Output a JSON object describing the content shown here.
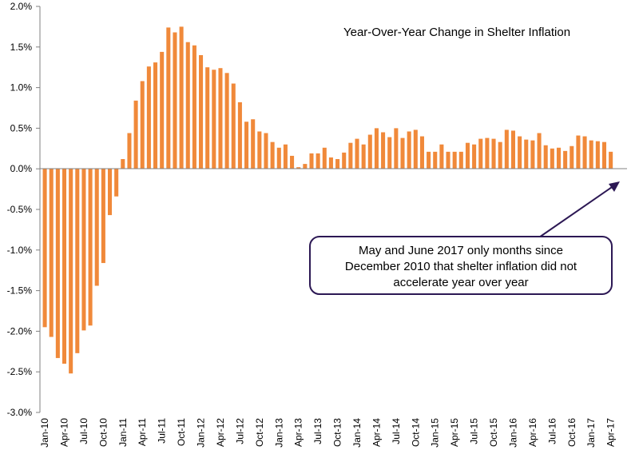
{
  "chart_data": {
    "type": "bar",
    "title": "Year-Over-Year Change in Shelter Inflation",
    "xlabel": "",
    "ylabel": "",
    "ylim": [
      -3.0,
      2.0
    ],
    "ytick_values": [
      2.0,
      1.5,
      1.0,
      0.5,
      0.0,
      -0.5,
      -1.0,
      -1.5,
      -2.0,
      -2.5,
      -3.0
    ],
    "ytick_labels": [
      "2.0%",
      "1.5%",
      "1.0%",
      "0.5%",
      "0.0%",
      "-0.5%",
      "-1.0%",
      "-1.5%",
      "-2.0%",
      "-2.5%",
      "-3.0%"
    ],
    "xtick_labels": [
      "Jan-10",
      "Apr-10",
      "Jul-10",
      "Oct-10",
      "Jan-11",
      "Apr-11",
      "Jul-11",
      "Oct-11",
      "Jan-12",
      "Apr-12",
      "Jul-12",
      "Oct-12",
      "Jan-13",
      "Apr-13",
      "Jul-13",
      "Oct-13",
      "Jan-14",
      "Apr-14",
      "Jul-14",
      "Oct-14",
      "Jan-15",
      "Apr-15",
      "Jul-15",
      "Oct-15",
      "Jan-16",
      "Apr-16",
      "Jul-16",
      "Oct-16",
      "Jan-17",
      "Apr-17"
    ],
    "bar_color": "#f0893a",
    "series": [
      {
        "name": "Year-Over-Year Change in Shelter Inflation (%)",
        "values": [
          -1.95,
          -2.07,
          -2.33,
          -2.4,
          -2.52,
          -2.27,
          -1.99,
          -1.93,
          -1.44,
          -1.16,
          -0.57,
          -0.34,
          0.12,
          0.44,
          0.84,
          1.08,
          1.26,
          1.31,
          1.44,
          1.74,
          1.68,
          1.75,
          1.56,
          1.52,
          1.4,
          1.25,
          1.22,
          1.24,
          1.18,
          1.05,
          0.82,
          0.58,
          0.61,
          0.46,
          0.44,
          0.33,
          0.26,
          0.3,
          0.16,
          0.02,
          0.06,
          0.19,
          0.19,
          0.26,
          0.14,
          0.12,
          0.2,
          0.32,
          0.37,
          0.3,
          0.42,
          0.5,
          0.45,
          0.39,
          0.5,
          0.38,
          0.46,
          0.48,
          0.4,
          0.21,
          0.21,
          0.3,
          0.21,
          0.21,
          0.21,
          0.32,
          0.3,
          0.37,
          0.38,
          0.37,
          0.33,
          0.48,
          0.47,
          0.4,
          0.36,
          0.35,
          0.44,
          0.29,
          0.25,
          0.26,
          0.22,
          0.28,
          0.41,
          0.4,
          0.35,
          0.34,
          0.33,
          0.21,
          0.0,
          0.0
        ]
      }
    ]
  },
  "annotation": {
    "lines": [
      "May and June 2017 only months since",
      "December 2010 that shelter inflation did not",
      "accelerate year over year"
    ],
    "border_color": "#2c1854",
    "arrow_color": "#2c1854"
  }
}
